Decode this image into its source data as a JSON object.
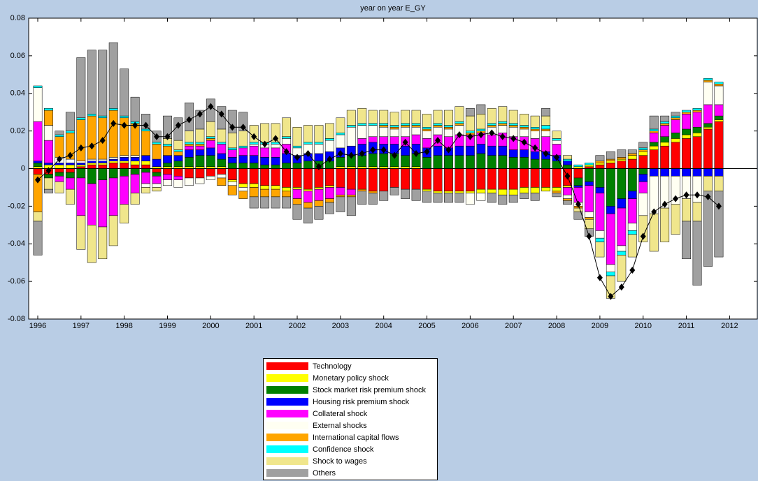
{
  "chart_data": {
    "type": "bar",
    "stacked": true,
    "title": "year on year E_GY",
    "x": [
      1996,
      1996.25,
      1996.5,
      1996.75,
      1997,
      1997.25,
      1997.5,
      1997.75,
      1998,
      1998.25,
      1998.5,
      1998.75,
      1999,
      1999.25,
      1999.5,
      1999.75,
      2000,
      2000.25,
      2000.5,
      2000.75,
      2001,
      2001.25,
      2001.5,
      2001.75,
      2002,
      2002.25,
      2002.5,
      2002.75,
      2003,
      2003.25,
      2003.5,
      2003.75,
      2004,
      2004.25,
      2004.5,
      2004.75,
      2005,
      2005.25,
      2005.5,
      2005.75,
      2006,
      2006.25,
      2006.5,
      2006.75,
      2007,
      2007.25,
      2007.5,
      2007.75,
      2008,
      2008.25,
      2008.5,
      2008.75,
      2009,
      2009.25,
      2009.5,
      2009.75,
      2010,
      2010.25,
      2010.5,
      2010.75,
      2011,
      2011.25,
      2011.5,
      2011.75
    ],
    "xlim": [
      1995.79,
      2012.64
    ],
    "xticks": [
      1996,
      1997,
      1998,
      1999,
      2000,
      2001,
      2002,
      2003,
      2004,
      2005,
      2006,
      2007,
      2008,
      2009,
      2010,
      2011,
      2012
    ],
    "ylim": [
      -0.08,
      0.08
    ],
    "yticks": [
      -0.08,
      -0.06,
      -0.04,
      -0.02,
      0,
      0.02,
      0.04,
      0.06,
      0.08
    ],
    "series": [
      {
        "name": "Technology",
        "color": "#ff0000",
        "values": [
          -0.003,
          -0.003,
          -0.002,
          -0.002,
          0.001,
          0.002,
          0.002,
          0.003,
          0.003,
          0.002,
          0.002,
          -0.002,
          -0.003,
          -0.004,
          -0.005,
          -0.005,
          -0.004,
          -0.003,
          -0.006,
          -0.008,
          -0.008,
          -0.009,
          -0.009,
          -0.01,
          -0.01,
          -0.011,
          -0.01,
          -0.009,
          -0.01,
          -0.011,
          -0.011,
          -0.012,
          -0.012,
          -0.01,
          -0.011,
          -0.011,
          -0.011,
          -0.012,
          -0.012,
          -0.012,
          -0.012,
          -0.011,
          -0.011,
          -0.011,
          -0.011,
          -0.01,
          -0.01,
          -0.01,
          -0.01,
          -0.009,
          -0.005,
          0.001,
          0.002,
          0.003,
          0.004,
          0.005,
          0.007,
          0.01,
          0.012,
          0.014,
          0.016,
          0.017,
          0.021,
          0.025
        ]
      },
      {
        "name": "Monetary policy shock",
        "color": "#ffff00",
        "values": [
          0.001,
          0.002,
          0.002,
          0.002,
          0.001,
          0.001,
          0.001,
          0.001,
          0.001,
          0.002,
          0.002,
          0.001,
          0.001,
          0.001,
          0.001,
          0.001,
          0.001,
          0.001,
          -0.001,
          -0.002,
          -0.002,
          -0.002,
          -0.002,
          -0.002,
          -0.001,
          -0.001,
          -0.001,
          -0.001,
          0.001,
          0.001,
          0.001,
          0.001,
          0.001,
          0.001,
          0.001,
          0.001,
          -0.001,
          -0.001,
          -0.001,
          -0.001,
          -0.001,
          -0.002,
          -0.002,
          -0.003,
          -0.003,
          -0.003,
          -0.003,
          -0.002,
          -0.002,
          -0.001,
          0.001,
          0.001,
          0.001,
          0.001,
          0.001,
          0.002,
          0.002,
          0.002,
          0.002,
          0.002,
          0.002,
          0.002,
          0.001,
          0.001
        ]
      },
      {
        "name": "Stock market risk premium shock",
        "color": "#008000",
        "values": [
          0.002,
          -0.002,
          -0.002,
          -0.003,
          -0.005,
          -0.008,
          -0.006,
          -0.005,
          -0.004,
          -0.003,
          -0.002,
          -0.002,
          0.002,
          0.003,
          0.005,
          0.006,
          0.006,
          0.004,
          0.003,
          0.003,
          0.003,
          0.002,
          0.002,
          0.003,
          0.003,
          0.004,
          0.004,
          0.004,
          0.005,
          0.006,
          0.006,
          0.007,
          0.007,
          0.007,
          0.006,
          0.007,
          0.006,
          0.007,
          0.007,
          0.007,
          0.007,
          0.008,
          0.007,
          0.007,
          0.006,
          0.006,
          0.005,
          0.005,
          0.004,
          0.002,
          -0.004,
          -0.007,
          -0.01,
          -0.02,
          -0.016,
          -0.012,
          -0.003,
          0.002,
          0.003,
          0.003,
          0.003,
          0.003,
          0.002,
          0.002
        ]
      },
      {
        "name": "Housing risk premium shock",
        "color": "#0000ff",
        "values": [
          0.001,
          0.001,
          0.001,
          0.001,
          0.001,
          0.001,
          0.001,
          0.001,
          0.002,
          0.002,
          0.003,
          0.004,
          0.004,
          0.003,
          0.004,
          0.003,
          0.004,
          0.003,
          0.003,
          0.004,
          0.004,
          0.004,
          0.004,
          0.005,
          0.004,
          0.004,
          0.004,
          0.005,
          0.005,
          0.005,
          0.006,
          0.006,
          0.005,
          0.005,
          0.005,
          0.005,
          0.005,
          0.005,
          0.004,
          0.005,
          0.005,
          0.005,
          0.005,
          0.005,
          0.004,
          0.004,
          0.004,
          0.004,
          0.003,
          0.002,
          -0.001,
          -0.002,
          -0.003,
          -0.004,
          -0.005,
          -0.004,
          -0.004,
          -0.004,
          -0.004,
          -0.004,
          -0.004,
          -0.004,
          -0.004,
          -0.004
        ]
      },
      {
        "name": "Collateral shock",
        "color": "#ff00ff",
        "values": [
          0.021,
          0.012,
          -0.003,
          -0.006,
          -0.02,
          -0.022,
          -0.025,
          -0.02,
          -0.015,
          -0.01,
          -0.006,
          -0.004,
          -0.003,
          -0.002,
          0.002,
          0.002,
          0.004,
          0.005,
          0.004,
          0.004,
          0.005,
          0.005,
          0.005,
          0.005,
          -0.005,
          -0.006,
          -0.006,
          -0.006,
          -0.004,
          -0.003,
          0.003,
          0.003,
          0.004,
          0.004,
          0.005,
          0.005,
          0.005,
          0.006,
          0.006,
          0.006,
          0.006,
          0.006,
          0.006,
          0.007,
          0.007,
          0.007,
          0.007,
          0.008,
          0.006,
          -0.004,
          -0.008,
          -0.014,
          -0.02,
          -0.027,
          -0.02,
          -0.013,
          -0.006,
          0.005,
          0.006,
          0.007,
          0.008,
          0.008,
          0.01,
          0.006
        ]
      },
      {
        "name": "External shocks",
        "color": "#fffff2",
        "values": [
          0.018,
          0.008,
          0.003,
          0.002,
          0.001,
          0.001,
          0.001,
          0.001,
          0.001,
          0.001,
          -0.002,
          -0.002,
          -0.003,
          -0.004,
          -0.004,
          -0.003,
          -0.002,
          -0.002,
          -0.002,
          -0.002,
          0.001,
          0.002,
          0.002,
          0.003,
          0.004,
          0.005,
          0.005,
          0.006,
          0.007,
          0.01,
          0.007,
          0.006,
          0.005,
          0.004,
          0.005,
          0.004,
          0.004,
          0.004,
          0.004,
          0.005,
          -0.006,
          -0.004,
          0.004,
          0.004,
          0.005,
          0.004,
          0.004,
          0.003,
          0.002,
          -0.002,
          -0.002,
          -0.003,
          -0.004,
          -0.004,
          -0.003,
          -0.004,
          -0.012,
          -0.02,
          -0.017,
          -0.015,
          -0.012,
          -0.014,
          0.012,
          0.01
        ]
      },
      {
        "name": "International capital flows",
        "color": "#ffa500",
        "values": [
          -0.02,
          0.008,
          0.011,
          0.014,
          0.022,
          0.023,
          0.022,
          0.025,
          0.02,
          0.017,
          0.013,
          0.008,
          0.005,
          0.002,
          0.001,
          0.001,
          0.001,
          -0.004,
          -0.005,
          -0.004,
          -0.005,
          -0.004,
          -0.004,
          -0.003,
          -0.003,
          -0.003,
          -0.003,
          -0.002,
          -0.001,
          -0.001,
          -0.001,
          -0.001,
          0.001,
          0.001,
          0.001,
          0.001,
          0.001,
          0.001,
          0.001,
          0.001,
          0.001,
          0.001,
          0.001,
          0.001,
          0.001,
          0.001,
          0.001,
          0.001,
          -0.001,
          -0.001,
          -0.001,
          -0.001,
          0.001,
          0.001,
          0.001,
          0.001,
          0.001,
          0.001,
          0.001,
          0.001,
          0.001,
          0.001,
          0.001,
          0.001
        ]
      },
      {
        "name": "Confidence shock",
        "color": "#00ffff",
        "values": [
          0.001,
          0.001,
          0.001,
          0.001,
          0.001,
          0.001,
          0.001,
          0.001,
          0.001,
          0.001,
          0.001,
          0.001,
          0.001,
          0.001,
          0.001,
          0.001,
          0.001,
          0.001,
          0.001,
          0.001,
          0.001,
          0.001,
          0.001,
          0.001,
          0.001,
          0.001,
          0.001,
          0.001,
          0.001,
          0.001,
          0.001,
          0.001,
          0.001,
          0.001,
          0.001,
          0.001,
          0.001,
          0.001,
          0.001,
          0.001,
          0.001,
          0.001,
          0.001,
          0.001,
          0.001,
          0.001,
          0.001,
          0.002,
          0.001,
          0.001,
          0.001,
          0.001,
          -0.002,
          -0.002,
          -0.002,
          -0.002,
          0.001,
          0.001,
          0.001,
          0.001,
          0.001,
          0.001,
          0.001,
          0.001
        ]
      },
      {
        "name": "Shock to wages",
        "color": "#f0e68c",
        "values": [
          -0.005,
          -0.006,
          -0.006,
          -0.008,
          -0.018,
          -0.02,
          -0.017,
          -0.016,
          -0.01,
          -0.006,
          -0.003,
          -0.002,
          0.003,
          0.005,
          0.006,
          0.007,
          0.008,
          0.007,
          0.008,
          0.008,
          0.009,
          0.01,
          0.01,
          0.01,
          0.01,
          0.009,
          0.009,
          0.008,
          0.008,
          0.008,
          0.008,
          0.007,
          0.007,
          0.007,
          0.007,
          0.007,
          0.007,
          0.007,
          0.008,
          0.008,
          0.008,
          0.008,
          0.008,
          0.008,
          0.007,
          0.006,
          0.006,
          0.005,
          0.004,
          0.002,
          -0.002,
          -0.005,
          -0.008,
          -0.012,
          -0.014,
          -0.012,
          -0.014,
          -0.02,
          -0.018,
          -0.016,
          -0.012,
          -0.01,
          -0.008,
          -0.008
        ]
      },
      {
        "name": "Others",
        "color": "#a0a0a0",
        "values": [
          -0.018,
          -0.002,
          0.002,
          0.01,
          0.032,
          0.034,
          0.035,
          0.035,
          0.025,
          0.013,
          0.008,
          0.006,
          0.012,
          0.012,
          0.015,
          0.01,
          0.012,
          0.012,
          0.012,
          0.01,
          -0.006,
          -0.006,
          -0.006,
          -0.006,
          -0.008,
          -0.008,
          -0.007,
          -0.006,
          -0.008,
          -0.01,
          -0.007,
          -0.006,
          -0.005,
          -0.004,
          -0.005,
          -0.006,
          -0.006,
          -0.005,
          -0.005,
          -0.005,
          0.004,
          0.005,
          -0.005,
          -0.005,
          -0.004,
          -0.003,
          -0.004,
          0.004,
          -0.002,
          -0.002,
          -0.004,
          -0.004,
          0.003,
          0.004,
          0.004,
          0.002,
          0.003,
          0.007,
          0.003,
          0.002,
          -0.02,
          -0.034,
          -0.04,
          -0.035
        ]
      }
    ],
    "line": {
      "color": "#000000",
      "values": [
        -0.006,
        -0.001,
        0.005,
        0.007,
        0.011,
        0.012,
        0.015,
        0.024,
        0.023,
        0.023,
        0.023,
        0.017,
        0.017,
        0.023,
        0.026,
        0.029,
        0.033,
        0.029,
        0.022,
        0.022,
        0.017,
        0.013,
        0.016,
        0.009,
        0.006,
        0.008,
        0.001,
        0.005,
        0.008,
        0.007,
        0.008,
        0.01,
        0.01,
        0.007,
        0.014,
        0.008,
        0.009,
        0.015,
        0.01,
        0.018,
        0.017,
        0.018,
        0.019,
        0.017,
        0.016,
        0.014,
        0.011,
        0.008,
        0.006,
        -0.004,
        -0.019,
        -0.036,
        -0.058,
        -0.068,
        -0.063,
        -0.054,
        -0.036,
        -0.023,
        -0.019,
        -0.016,
        -0.014,
        -0.014,
        -0.015,
        -0.02
      ]
    }
  }
}
